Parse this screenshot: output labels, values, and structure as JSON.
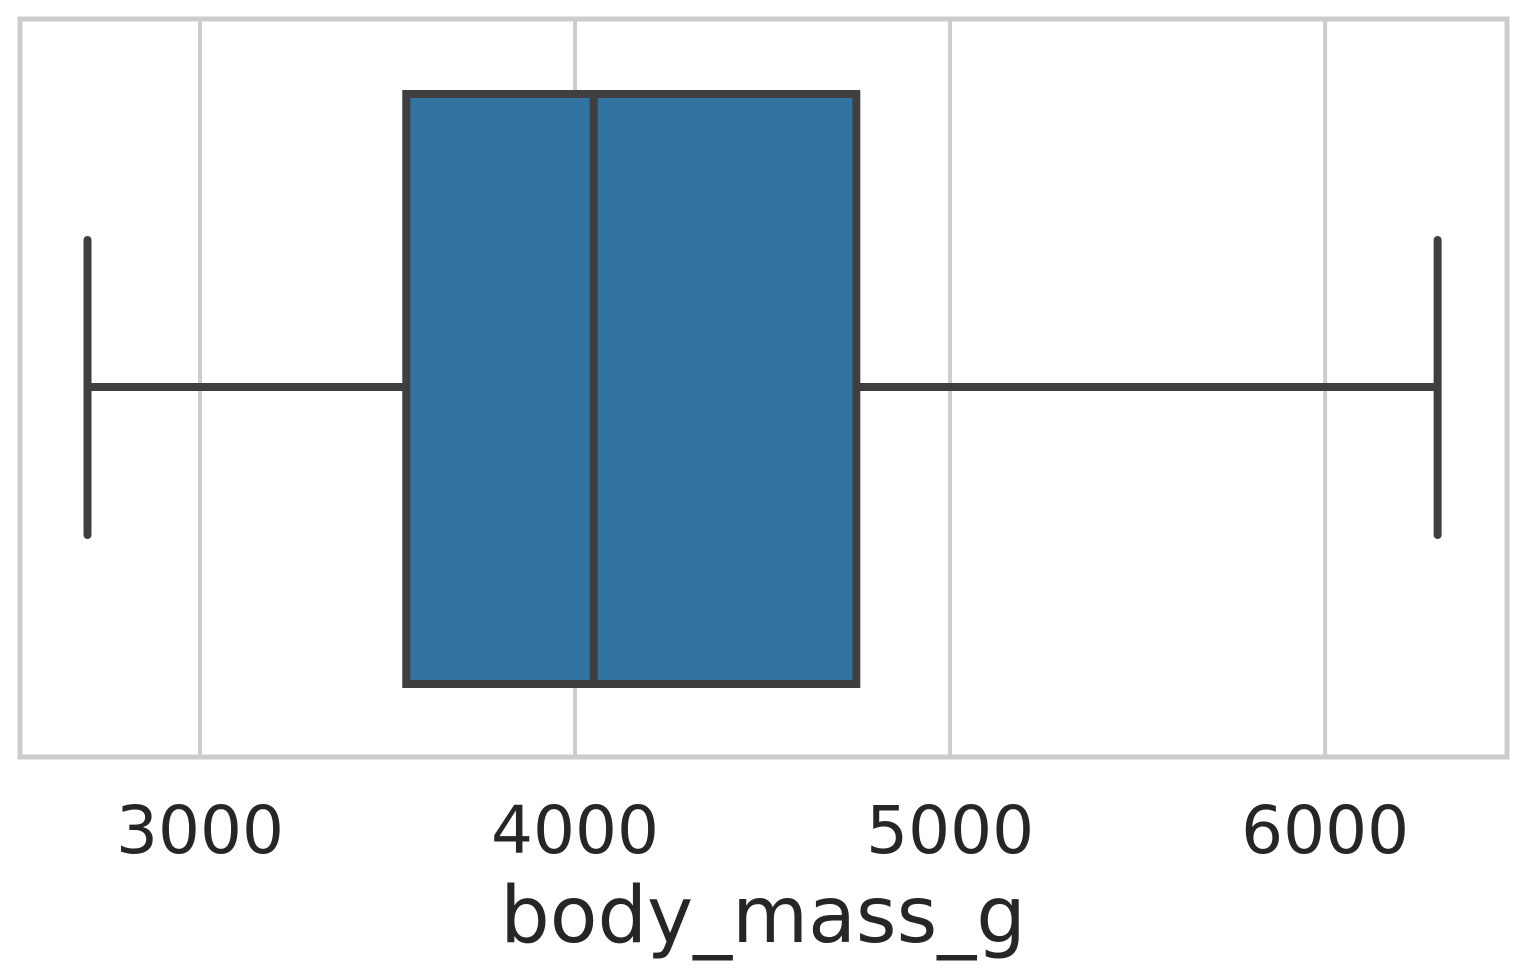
{
  "chart_data": {
    "type": "box",
    "orientation": "horizontal",
    "xlabel": "body_mass_g",
    "xlim": [
      2520,
      6485
    ],
    "xticks": [
      3000,
      4000,
      5000,
      6000
    ],
    "xtick_labels": [
      "3000",
      "4000",
      "5000",
      "6000"
    ],
    "grid": true,
    "box": {
      "whisker_low": 2700,
      "q1": 3550,
      "median": 4050,
      "q3": 4750,
      "whisker_high": 6300
    },
    "colors": {
      "box_fill": "#3274a1",
      "lines": "#3f3f3f",
      "grid": "#cccccc",
      "text": "#262626"
    }
  }
}
